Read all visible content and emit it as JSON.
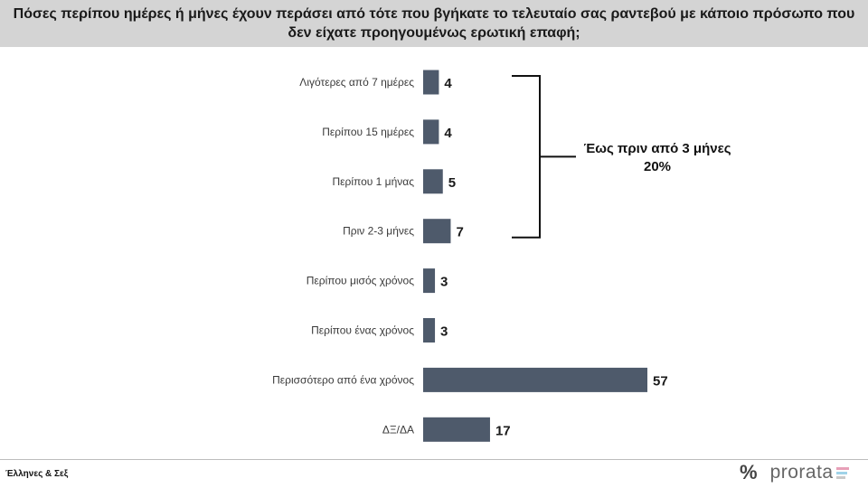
{
  "header": {
    "title_line1": "Πόσες περίπου ημέρες ή μήνες έχουν περάσει από τότε που βγήκατε το τελευταίο σας ραντεβού με κάποιο πρόσωπο που",
    "title_line2": "δεν είχατε προηγουμένως ερωτική επαφή;"
  },
  "chart_data": {
    "type": "bar",
    "orientation": "horizontal",
    "categories": [
      "Λιγότερες από 7 ημέρες",
      "Περίπου 15 ημέρες",
      "Περίπου 1 μήνας",
      "Πριν 2-3 μήνες",
      "Περίπου μισός χρόνος",
      "Περίπου ένας χρόνος",
      "Περισσότερο από ένα χρόνος",
      "ΔΞ/ΔΑ"
    ],
    "values": [
      4,
      4,
      5,
      7,
      3,
      3,
      57,
      17
    ],
    "xlim": [
      0,
      60
    ],
    "grid": false,
    "bar_color": "#4e5a6b",
    "annotation": {
      "line1": "Έως πριν από 3 μήνες",
      "line2": "20%",
      "spans_categories": [
        0,
        3
      ]
    }
  },
  "footer": {
    "source": "Έλληνες & Σεξ",
    "logo_symbol": "%",
    "logo_text": "prorata",
    "logo_colors": [
      "#e8a0b8",
      "#9fd3e8",
      "#c9c9c9"
    ]
  }
}
